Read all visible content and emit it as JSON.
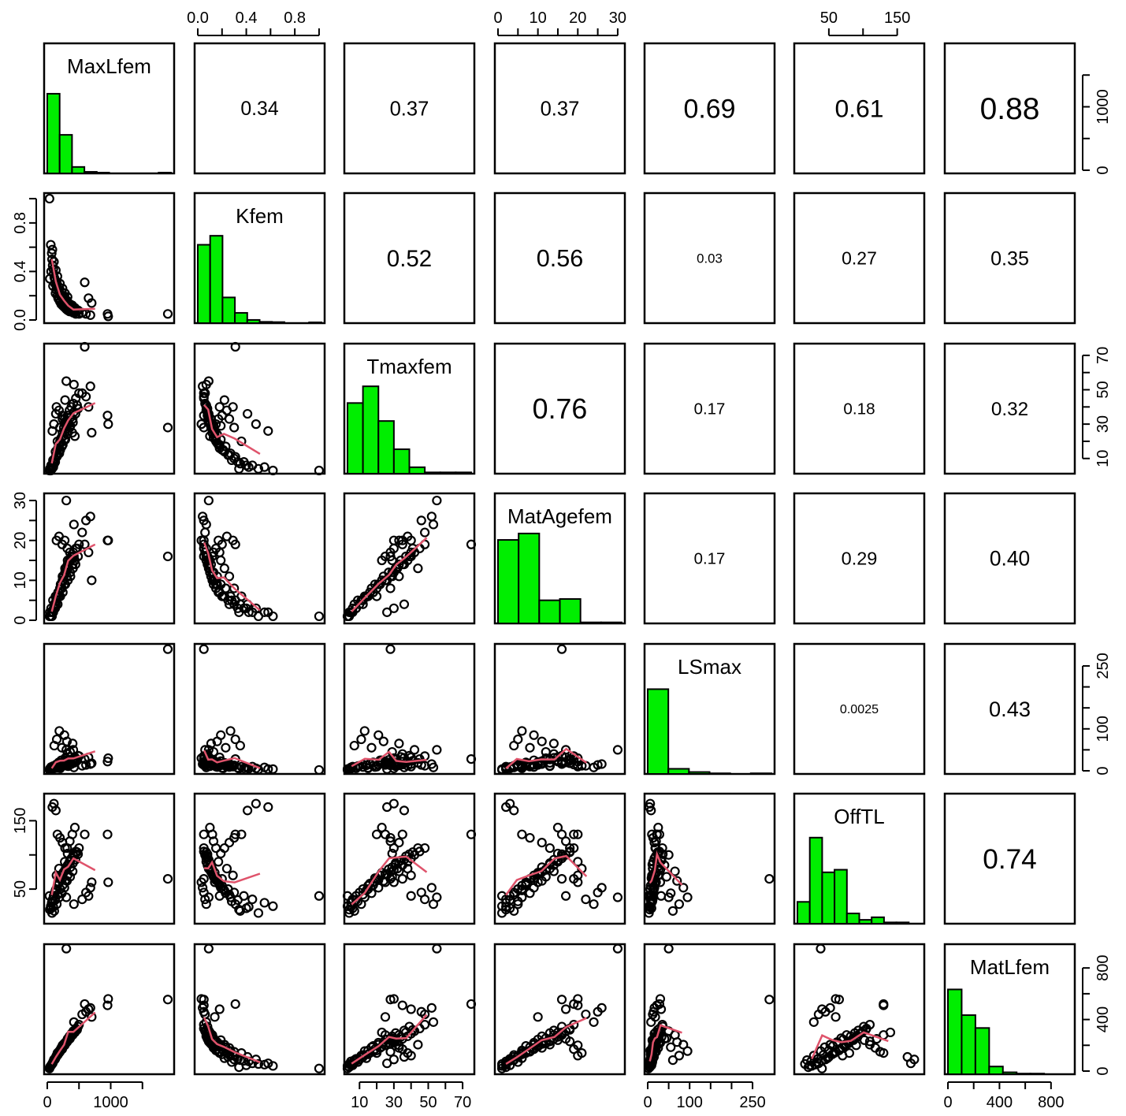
{
  "chart_data": {
    "type": "scatter-matrix",
    "variables": [
      "MaxLfem",
      "Kfem",
      "Tmaxfem",
      "MatAgefem",
      "LSmax",
      "OffTL",
      "MatLfem"
    ],
    "correlations": [
      {
        "row": 0,
        "col": 1,
        "label": "0.34",
        "value": 0.34
      },
      {
        "row": 0,
        "col": 2,
        "label": "0.37",
        "value": 0.37
      },
      {
        "row": 0,
        "col": 3,
        "label": "0.37",
        "value": 0.37
      },
      {
        "row": 0,
        "col": 4,
        "label": "0.69",
        "value": 0.69
      },
      {
        "row": 0,
        "col": 5,
        "label": "0.61",
        "value": 0.61
      },
      {
        "row": 0,
        "col": 6,
        "label": "0.88",
        "value": 0.88
      },
      {
        "row": 1,
        "col": 2,
        "label": "0.52",
        "value": 0.52
      },
      {
        "row": 1,
        "col": 3,
        "label": "0.56",
        "value": 0.56
      },
      {
        "row": 1,
        "col": 4,
        "label": "0.03",
        "value": 0.03
      },
      {
        "row": 1,
        "col": 5,
        "label": "0.27",
        "value": 0.27
      },
      {
        "row": 1,
        "col": 6,
        "label": "0.35",
        "value": 0.35
      },
      {
        "row": 2,
        "col": 3,
        "label": "0.76",
        "value": 0.76
      },
      {
        "row": 2,
        "col": 4,
        "label": "0.17",
        "value": 0.17
      },
      {
        "row": 2,
        "col": 5,
        "label": "0.18",
        "value": 0.18
      },
      {
        "row": 2,
        "col": 6,
        "label": "0.32",
        "value": 0.32
      },
      {
        "row": 3,
        "col": 4,
        "label": "0.17",
        "value": 0.17
      },
      {
        "row": 3,
        "col": 5,
        "label": "0.29",
        "value": 0.29
      },
      {
        "row": 3,
        "col": 6,
        "label": "0.40",
        "value": 0.4
      },
      {
        "row": 4,
        "col": 5,
        "label": "0.0025",
        "value": 0.0025
      },
      {
        "row": 4,
        "col": 6,
        "label": "0.43",
        "value": 0.43
      },
      {
        "row": 5,
        "col": 6,
        "label": "0.74",
        "value": 0.74
      }
    ],
    "axes": {
      "top": [
        {
          "col": 1,
          "ticks": [
            0.0,
            0.2,
            0.4,
            0.6,
            0.8,
            1.0
          ],
          "labels": [
            [
              "0.0",
              0.0
            ],
            [
              "0.4",
              0.4
            ],
            [
              "0.8",
              0.8
            ]
          ]
        },
        {
          "col": 3,
          "ticks": [
            0,
            5,
            10,
            15,
            20,
            25,
            30
          ],
          "labels": [
            [
              "0",
              0
            ],
            [
              "10",
              10
            ],
            [
              "20",
              20
            ],
            [
              "30",
              30
            ]
          ]
        },
        {
          "col": 5,
          "ticks": [
            50,
            100,
            150
          ],
          "labels": [
            [
              "50",
              50
            ],
            [
              "150",
              150
            ]
          ]
        }
      ],
      "bottom": [
        {
          "col": 0,
          "ticks": [
            0,
            500,
            1000,
            1500
          ],
          "labels": [
            [
              "0",
              0
            ],
            [
              "1000",
              1000
            ]
          ]
        },
        {
          "col": 2,
          "ticks": [
            10,
            20,
            30,
            40,
            50,
            60,
            70
          ],
          "labels": [
            [
              "10",
              10
            ],
            [
              "30",
              30
            ],
            [
              "50",
              50
            ],
            [
              "70",
              70
            ]
          ]
        },
        {
          "col": 4,
          "ticks": [
            0,
            50,
            100,
            150,
            200,
            250
          ],
          "labels": [
            [
              "0",
              0
            ],
            [
              "100",
              100
            ],
            [
              "250",
              250
            ]
          ]
        },
        {
          "col": 6,
          "ticks": [
            0,
            200,
            400,
            600,
            800
          ],
          "labels": [
            [
              "0",
              0
            ],
            [
              "400",
              400
            ],
            [
              "800",
              800
            ]
          ]
        }
      ],
      "left": [
        {
          "row": 1,
          "ticks": [
            0.0,
            0.2,
            0.4,
            0.6,
            0.8,
            1.0
          ],
          "labels": [
            [
              "0.0",
              0.0
            ],
            [
              "0.4",
              0.4
            ],
            [
              "0.8",
              0.8
            ]
          ]
        },
        {
          "row": 3,
          "ticks": [
            0,
            5,
            10,
            15,
            20,
            25,
            30
          ],
          "labels": [
            [
              "0",
              0
            ],
            [
              "10",
              10
            ],
            [
              "20",
              20
            ],
            [
              "30",
              30
            ]
          ]
        },
        {
          "row": 5,
          "ticks": [
            50,
            100,
            150
          ],
          "labels": [
            [
              "50",
              50
            ],
            [
              "150",
              150
            ]
          ]
        }
      ],
      "right": [
        {
          "row": 0,
          "ticks": [
            0,
            500,
            1000,
            1500
          ],
          "labels": [
            [
              "0",
              0
            ],
            [
              "1000",
              1000
            ]
          ]
        },
        {
          "row": 2,
          "ticks": [
            10,
            20,
            30,
            40,
            50,
            60,
            70
          ],
          "labels": [
            [
              "10",
              10
            ],
            [
              "30",
              30
            ],
            [
              "50",
              50
            ],
            [
              "70",
              70
            ]
          ]
        },
        {
          "row": 4,
          "ticks": [
            0,
            50,
            100,
            150,
            200,
            250
          ],
          "labels": [
            [
              "0",
              0
            ],
            [
              "100",
              100
            ],
            [
              "250",
              250
            ]
          ]
        },
        {
          "row": 6,
          "ticks": [
            0,
            200,
            400,
            600,
            800
          ],
          "labels": [
            [
              "0",
              0
            ],
            [
              "400",
              400
            ],
            [
              "800",
              800
            ]
          ]
        }
      ]
    },
    "ranges": [
      [
        0,
        1950
      ],
      [
        0,
        1.02
      ],
      [
        3,
        75
      ],
      [
        0,
        31
      ],
      [
        0,
        295
      ],
      [
        4,
        185
      ],
      [
        0,
        960
      ]
    ],
    "histograms": [
      {
        "var": "MaxLfem",
        "edges": [
          0,
          200,
          400,
          600,
          800,
          1000,
          1200,
          1400,
          1600,
          1800,
          2000
        ],
        "heights": [
          0.62,
          0.3,
          0.05,
          0.012,
          0.006,
          0.0,
          0.0,
          0.0,
          0.0,
          0.006
        ]
      },
      {
        "var": "Kfem",
        "edges": [
          0.0,
          0.1,
          0.2,
          0.3,
          0.4,
          0.5,
          0.6,
          0.7,
          0.8,
          0.9,
          1.0
        ],
        "heights": [
          0.61,
          0.68,
          0.2,
          0.08,
          0.025,
          0.01,
          0.008,
          0.0,
          0.0,
          0.006
        ]
      },
      {
        "var": "Tmaxfem",
        "edges": [
          0,
          10,
          20,
          30,
          40,
          50,
          60,
          70,
          80
        ],
        "heights": [
          0.55,
          0.68,
          0.41,
          0.19,
          0.05,
          0.01,
          0.01,
          0.01
        ]
      },
      {
        "var": "MatAgefem",
        "edges": [
          0,
          5,
          10,
          15,
          20,
          25,
          30
        ],
        "heights": [
          0.65,
          0.7,
          0.18,
          0.19,
          0.008,
          0.008
        ]
      },
      {
        "var": "LSmax",
        "edges": [
          0,
          50,
          100,
          150,
          200,
          250,
          300
        ],
        "heights": [
          0.66,
          0.04,
          0.015,
          0.005,
          0.0,
          0.005
        ]
      },
      {
        "var": "OffTL",
        "edges": [
          0,
          20,
          40,
          60,
          80,
          100,
          120,
          140,
          160,
          180,
          200
        ],
        "heights": [
          0.17,
          0.67,
          0.4,
          0.42,
          0.08,
          0.03,
          0.05,
          0.01,
          0.01,
          0.0
        ]
      },
      {
        "var": "MatLfem",
        "edges": [
          0,
          100,
          200,
          300,
          400,
          500,
          600,
          700,
          800,
          900
        ],
        "heights": [
          0.66,
          0.46,
          0.36,
          0.06,
          0.015,
          0.005,
          0.005,
          0.0,
          0.0
        ]
      }
    ],
    "species_sample": [
      [
        40,
        0.34,
        4,
        2,
        5,
        20,
        30
      ],
      [
        55,
        0.62,
        3,
        1,
        4,
        25,
        40
      ],
      [
        70,
        0.55,
        5,
        2,
        8,
        30,
        50
      ],
      [
        85,
        0.45,
        6,
        2,
        10,
        35,
        60
      ],
      [
        100,
        0.38,
        8,
        3,
        6,
        40,
        80
      ],
      [
        120,
        0.3,
        10,
        4,
        12,
        45,
        90
      ],
      [
        140,
        0.25,
        12,
        5,
        15,
        50,
        110
      ],
      [
        160,
        0.2,
        15,
        6,
        7,
        55,
        130
      ],
      [
        180,
        0.17,
        18,
        7,
        20,
        60,
        150
      ],
      [
        200,
        0.15,
        20,
        8,
        10,
        65,
        160
      ],
      [
        220,
        0.13,
        22,
        9,
        25,
        70,
        180
      ],
      [
        240,
        0.12,
        25,
        10,
        14,
        72,
        200
      ],
      [
        260,
        0.11,
        28,
        11,
        18,
        75,
        210
      ],
      [
        280,
        0.1,
        30,
        12,
        30,
        78,
        220
      ],
      [
        300,
        0.09,
        32,
        13,
        12,
        80,
        230
      ],
      [
        320,
        0.08,
        35,
        14,
        40,
        85,
        250
      ],
      [
        350,
        0.07,
        38,
        15,
        22,
        90,
        270
      ],
      [
        380,
        0.07,
        40,
        16,
        16,
        95,
        290
      ],
      [
        410,
        0.06,
        42,
        17,
        50,
        100,
        310
      ],
      [
        450,
        0.05,
        45,
        18,
        28,
        105,
        330
      ],
      [
        500,
        0.05,
        48,
        19,
        35,
        110,
        360
      ],
      [
        60,
        0.4,
        6,
        3,
        9,
        22,
        45
      ],
      [
        90,
        0.28,
        9,
        5,
        11,
        32,
        70
      ],
      [
        130,
        0.22,
        14,
        6,
        13,
        48,
        100
      ],
      [
        170,
        0.18,
        16,
        7,
        17,
        58,
        140
      ],
      [
        210,
        0.16,
        19,
        9,
        9,
        66,
        170
      ],
      [
        250,
        0.14,
        23,
        10,
        21,
        74,
        190
      ],
      [
        290,
        0.12,
        27,
        12,
        26,
        79,
        215
      ],
      [
        330,
        0.1,
        31,
        13,
        11,
        86,
        240
      ],
      [
        370,
        0.09,
        34,
        15,
        33,
        92,
        265
      ],
      [
        420,
        0.08,
        37,
        16,
        19,
        98,
        300
      ],
      [
        470,
        0.07,
        41,
        18,
        24,
        104,
        320
      ],
      [
        110,
        0.35,
        7,
        4,
        60,
        18,
        85
      ],
      [
        150,
        0.31,
        11,
        5,
        75,
        28,
        120
      ],
      [
        190,
        0.27,
        13,
        6,
        95,
        38,
        155
      ],
      [
        230,
        0.23,
        17,
        8,
        55,
        44,
        185
      ],
      [
        270,
        0.19,
        21,
        9,
        85,
        52,
        205
      ],
      [
        310,
        0.16,
        24,
        11,
        70,
        62,
        225
      ],
      [
        360,
        0.13,
        29,
        12,
        45,
        68,
        255
      ],
      [
        400,
        0.11,
        33,
        14,
        65,
        76,
        280
      ],
      [
        75,
        0.5,
        4,
        1,
        3,
        15,
        55
      ],
      [
        95,
        0.42,
        5,
        2,
        5,
        24,
        75
      ],
      [
        125,
        0.33,
        8,
        3,
        7,
        34,
        95
      ],
      [
        165,
        0.26,
        12,
        4,
        9,
        42,
        125
      ],
      [
        205,
        0.21,
        15,
        6,
        6,
        50,
        160
      ],
      [
        245,
        0.18,
        18,
        7,
        12,
        56,
        195
      ],
      [
        285,
        0.15,
        21,
        9,
        14,
        63,
        220
      ],
      [
        325,
        0.13,
        26,
        10,
        18,
        71,
        245
      ],
      [
        365,
        0.11,
        29,
        11,
        23,
        82,
        270
      ],
      [
        405,
        0.1,
        31,
        13,
        27,
        88,
        295
      ],
      [
        445,
        0.09,
        36,
        14,
        31,
        93,
        315
      ],
      [
        485,
        0.08,
        39,
        16,
        36,
        101,
        345
      ],
      [
        145,
        0.29,
        40,
        20,
        10,
        70,
        120
      ],
      [
        185,
        0.24,
        38,
        21,
        12,
        80,
        140
      ],
      [
        235,
        0.2,
        35,
        19,
        15,
        65,
        170
      ],
      [
        275,
        0.17,
        33,
        20,
        13,
        90,
        200
      ],
      [
        315,
        0.15,
        30,
        18,
        18,
        110,
        230
      ],
      [
        355,
        0.13,
        28,
        17,
        20,
        120,
        250
      ],
      [
        395,
        0.12,
        25,
        16,
        22,
        130,
        280
      ],
      [
        435,
        0.1,
        23,
        15,
        25,
        140,
        300
      ],
      [
        80,
        0.58,
        26,
        2,
        4,
        170,
        60
      ],
      [
        105,
        0.48,
        30,
        3,
        6,
        175,
        90
      ],
      [
        135,
        0.41,
        36,
        4,
        8,
        165,
        110
      ],
      [
        160,
        0.36,
        20,
        6,
        10,
        130,
        140
      ],
      [
        200,
        0.3,
        28,
        8,
        13,
        125,
        150
      ],
      [
        240,
        0.26,
        33,
        11,
        16,
        118,
        180
      ],
      [
        280,
        0.22,
        44,
        13,
        19,
        110,
        205
      ],
      [
        320,
        0.19,
        29,
        15,
        23,
        102,
        240
      ],
      [
        590,
        0.31,
        75,
        19,
        28,
        130,
        520
      ],
      [
        650,
        0.18,
        40,
        17,
        32,
        40,
        480
      ],
      [
        700,
        0.14,
        25,
        10,
        18,
        60,
        420
      ],
      [
        950,
        0.05,
        35,
        20,
        22,
        130,
        510
      ],
      [
        960,
        0.03,
        30,
        20,
        30,
        60,
        560
      ],
      [
        1900,
        0.05,
        28,
        16,
        290,
        65,
        555
      ],
      [
        35,
        1.0,
        3,
        1,
        2,
        40,
        20
      ],
      [
        300,
        0.09,
        55,
        30,
        50,
        38,
        950
      ],
      [
        420,
        0.07,
        53,
        24,
        8,
        28,
        380
      ],
      [
        550,
        0.06,
        48,
        22,
        12,
        35,
        440
      ],
      [
        610,
        0.05,
        46,
        25,
        14,
        45,
        460
      ],
      [
        680,
        0.04,
        52,
        26,
        16,
        52,
        490
      ]
    ]
  }
}
